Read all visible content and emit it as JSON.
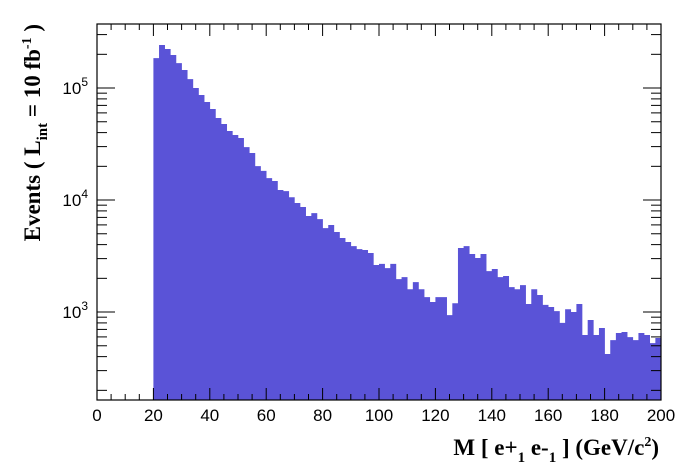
{
  "chart_data": {
    "type": "bar",
    "subtype": "histogram",
    "title": "",
    "xlabel": "M [ e+_1 e-_1 ] (GeV/c^2)",
    "xlabel_parts": {
      "pre": "M [ e+",
      "sub1": "1",
      "mid": " e-",
      "sub2": "1",
      "post": " ] (GeV/c",
      "sup": "2",
      "end": ")"
    },
    "ylabel": "Events ( L_int = 10 fb^-1 )",
    "ylabel_parts": {
      "pre": "Events  ( L",
      "sub": "int",
      "mid": " = 10 fb",
      "sup": "-1",
      "post": " )"
    },
    "xlim": [
      0,
      200
    ],
    "ylim": [
      164,
      373000
    ],
    "yscale": "log",
    "grid": false,
    "legend": null,
    "bar_color": "#5a53d7",
    "x_ticks": [
      0,
      20,
      40,
      60,
      80,
      100,
      120,
      140,
      160,
      180,
      200
    ],
    "y_ticks": [
      {
        "base": "10",
        "exp": "3",
        "value": 1000
      },
      {
        "base": "10",
        "exp": "4",
        "value": 10000
      },
      {
        "base": "10",
        "exp": "5",
        "value": 100000
      }
    ],
    "bin_width": 2,
    "bin_start": 20,
    "values": [
      185000,
      242000,
      223000,
      197000,
      167000,
      145000,
      120000,
      100000,
      86700,
      75000,
      65000,
      54000,
      47700,
      41300,
      38100,
      35800,
      29700,
      26300,
      20100,
      18200,
      15700,
      14800,
      12300,
      12000,
      10600,
      9400,
      8660,
      7200,
      7650,
      6760,
      5620,
      5980,
      5180,
      4580,
      4220,
      3880,
      3650,
      3580,
      3370,
      2630,
      2690,
      2470,
      2690,
      1970,
      2050,
      1600,
      1850,
      1600,
      1360,
      1230,
      1360,
      1360,
      940,
      1200,
      3730,
      3880,
      3300,
      3040,
      3300,
      2320,
      2420,
      2050,
      2100,
      1670,
      1600,
      1740,
      1180,
      1600,
      1420,
      1160,
      1110,
      1020,
      800,
      1060,
      1000,
      1180,
      624,
      849,
      624,
      720,
      422,
      562,
      650,
      663,
      598,
      562,
      650,
      624,
      528,
      586
    ]
  }
}
